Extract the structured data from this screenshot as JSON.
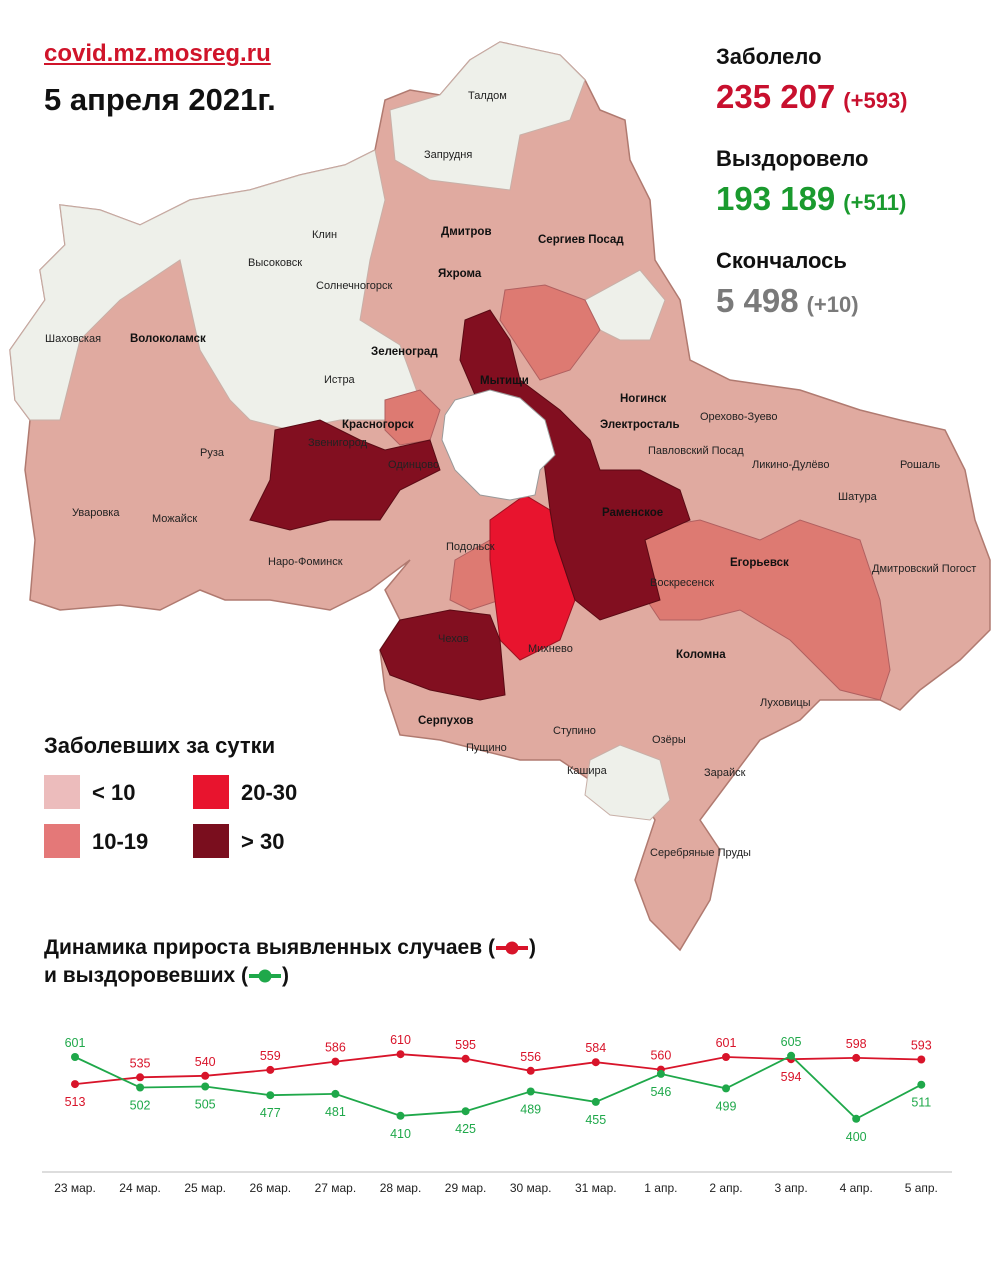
{
  "header": {
    "source": "covid.mz.mosreg.ru",
    "date": "5 апреля 2021г."
  },
  "stats": {
    "infected": {
      "label": "Заболело",
      "value": "235 207",
      "delta": "(+593)",
      "color": "#c8102e"
    },
    "recovered": {
      "label": "Выздоровело",
      "value": "193 189",
      "delta": "(+511)",
      "color": "#1a9a2e"
    },
    "deaths": {
      "label": "Скончалось",
      "value": "5 498",
      "delta": "(+10)",
      "color": "#7a7a7a"
    }
  },
  "legend": {
    "title": "Заболевших за сутки",
    "items": [
      {
        "label": "< 10",
        "color": "#ecbcbc"
      },
      {
        "label": "20-30",
        "color": "#e8142e"
      },
      {
        "label": "10-19",
        "color": "#e47878"
      },
      {
        "label": "> 30",
        "color": "#7a0e1e"
      }
    ]
  },
  "map": {
    "colors": {
      "none": "#eef0ea",
      "low": "#e3aaa0",
      "mid": "#dd7a72",
      "high": "#e8142e",
      "top": "#820f20"
    },
    "labels": [
      "Талдом",
      "Запрудня",
      "Дмитров",
      "Сергиев Посад",
      "Клин",
      "Высоковск",
      "Солнечногорск",
      "Яхрома",
      "Шаховская",
      "Волоколамск",
      "Зеленоград",
      "Мытищи",
      "Истра",
      "Ногинск",
      "Орехово-Зуево",
      "Красногорск",
      "Электросталь",
      "Павловский Посад",
      "Звенигород",
      "Одинцово",
      "Ликино-Дулёво",
      "Рошаль",
      "Руза",
      "Шатура",
      "Раменское",
      "Уваровка",
      "Можайск",
      "Подольск",
      "Наро-Фоминск",
      "Егорьевск",
      "Воскресенск",
      "Дмитровский Погост",
      "Чехов",
      "Михнево",
      "Коломна",
      "Серпухов",
      "Луховицы",
      "Ступино",
      "Пущино",
      "Озёры",
      "Кашира",
      "Зарайск",
      "Серебряные Пруды"
    ]
  },
  "chart_title": {
    "line1": "Динамика прироста выявленных случаев (",
    "line1_end": ")",
    "line2": "и выздоровевших (",
    "line2_end": ")"
  },
  "chart_data": {
    "type": "line",
    "categories": [
      "23 мар.",
      "24 мар.",
      "25 мар.",
      "26 мар.",
      "27 мар.",
      "28 мар.",
      "29 мар.",
      "30 мар.",
      "31 мар.",
      "1 апр.",
      "2 апр.",
      "3 апр.",
      "4 апр.",
      "5 апр."
    ],
    "series": [
      {
        "name": "выявленные случаи",
        "color": "#d8142a",
        "values": [
          513,
          535,
          540,
          559,
          586,
          610,
          595,
          556,
          584,
          560,
          601,
          594,
          598,
          593
        ]
      },
      {
        "name": "выздоровевшие",
        "color": "#1fa84a",
        "values": [
          601,
          502,
          505,
          477,
          481,
          410,
          425,
          489,
          455,
          546,
          499,
          605,
          400,
          511
        ]
      }
    ],
    "ylim": [
      380,
      640
    ],
    "grid": false
  }
}
